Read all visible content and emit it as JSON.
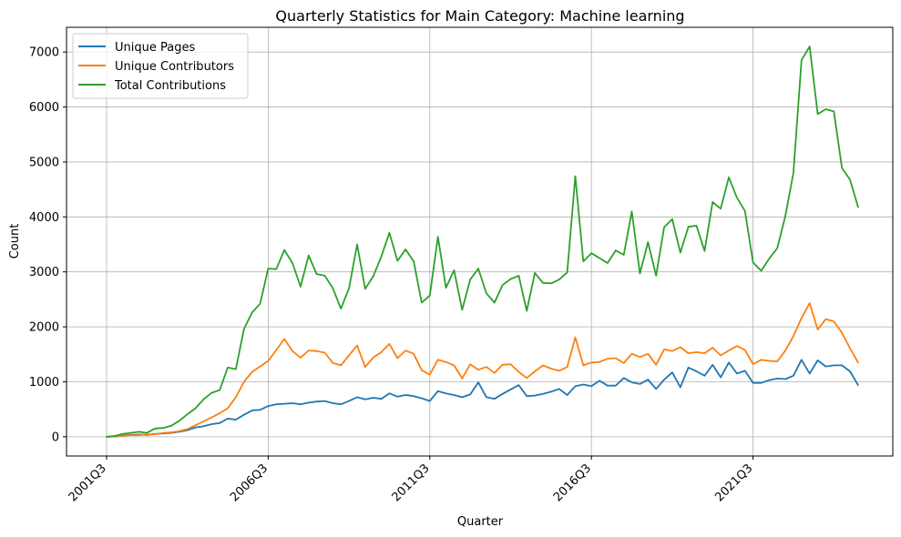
{
  "chart_data": {
    "type": "line",
    "title": "Quarterly Statistics for Main Category: Machine learning",
    "xlabel": "Quarter",
    "ylabel": "Count",
    "x_start": "2001Q3",
    "x_tick_labels": [
      "2001Q3",
      "2006Q3",
      "2011Q3",
      "2016Q3",
      "2021Q3"
    ],
    "y_ticks": [
      0,
      1000,
      2000,
      3000,
      4000,
      5000,
      6000,
      7000
    ],
    "ylim": [
      -350,
      7450
    ],
    "grid": true,
    "legend_position": "top-left",
    "series": [
      {
        "name": "Unique Pages",
        "color": "#1f77b4",
        "values": [
          0,
          5,
          20,
          35,
          40,
          35,
          50,
          60,
          70,
          90,
          120,
          170,
          190,
          230,
          250,
          330,
          310,
          400,
          480,
          490,
          560,
          590,
          600,
          610,
          590,
          620,
          640,
          650,
          610,
          590,
          650,
          720,
          680,
          710,
          690,
          790,
          730,
          760,
          740,
          700,
          650,
          830,
          790,
          760,
          720,
          770,
          990,
          720,
          690,
          780,
          860,
          940,
          740,
          750,
          780,
          820,
          870,
          760,
          920,
          950,
          920,
          1020,
          930,
          930,
          1070,
          990,
          960,
          1040,
          870,
          1040,
          1170,
          900,
          1260,
          1190,
          1110,
          1310,
          1080,
          1350,
          1150,
          1200,
          980,
          980,
          1030,
          1060,
          1050,
          1110,
          1400,
          1150,
          1390,
          1280,
          1300,
          1300,
          1190,
          940
        ]
      },
      {
        "name": "Unique Contributors",
        "color": "#ff7f0e",
        "values": [
          0,
          10,
          20,
          30,
          30,
          40,
          45,
          70,
          80,
          100,
          140,
          210,
          280,
          350,
          430,
          520,
          720,
          1000,
          1180,
          1280,
          1380,
          1580,
          1780,
          1560,
          1440,
          1570,
          1560,
          1530,
          1340,
          1300,
          1480,
          1660,
          1270,
          1440,
          1540,
          1690,
          1430,
          1570,
          1510,
          1210,
          1130,
          1400,
          1360,
          1300,
          1060,
          1320,
          1220,
          1270,
          1160,
          1310,
          1320,
          1180,
          1070,
          1190,
          1300,
          1240,
          1200,
          1270,
          1810,
          1300,
          1350,
          1360,
          1420,
          1430,
          1340,
          1510,
          1450,
          1510,
          1310,
          1590,
          1560,
          1630,
          1520,
          1540,
          1520,
          1620,
          1480,
          1570,
          1650,
          1580,
          1320,
          1400,
          1380,
          1370,
          1570,
          1830,
          2160,
          2430,
          1950,
          2140,
          2100,
          1890,
          1610,
          1350
        ]
      },
      {
        "name": "Total Contributions",
        "color": "#2ca02c",
        "values": [
          0,
          15,
          50,
          70,
          90,
          70,
          150,
          160,
          200,
          290,
          410,
          520,
          680,
          800,
          850,
          1260,
          1230,
          1960,
          2260,
          2420,
          3060,
          3050,
          3400,
          3160,
          2730,
          3300,
          2960,
          2930,
          2700,
          2330,
          2700,
          3500,
          2690,
          2920,
          3280,
          3710,
          3200,
          3410,
          3190,
          2440,
          2570,
          3640,
          2710,
          3030,
          2310,
          2860,
          3060,
          2610,
          2440,
          2760,
          2870,
          2930,
          2290,
          2980,
          2800,
          2790,
          2860,
          2990,
          4740,
          3190,
          3340,
          3250,
          3160,
          3390,
          3310,
          4100,
          2970,
          3540,
          2930,
          3810,
          3960,
          3350,
          3820,
          3840,
          3380,
          4270,
          4150,
          4720,
          4350,
          4110,
          3170,
          3020,
          3240,
          3430,
          4020,
          4800,
          6850,
          7100,
          5870,
          5960,
          5920,
          4890,
          4680,
          4180
        ]
      }
    ]
  }
}
